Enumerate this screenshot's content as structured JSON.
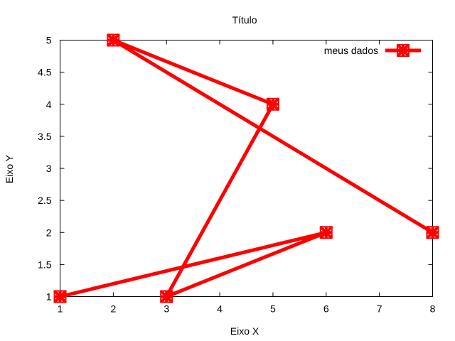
{
  "chart_data": {
    "type": "line",
    "title": "Título",
    "xlabel": "Eixo X",
    "ylabel": "Eixo Y",
    "xlim": [
      1,
      8
    ],
    "ylim": [
      1,
      5
    ],
    "xticks": [
      1,
      2,
      3,
      4,
      5,
      6,
      7,
      8
    ],
    "yticks": [
      1,
      1.5,
      2,
      2.5,
      3,
      3.5,
      4,
      4.5,
      5
    ],
    "grid": false,
    "legend_position": "top-right",
    "series": [
      {
        "name": "meus dados",
        "color": "#ff0000",
        "marker": "cross-star",
        "x": [
          1,
          6,
          3,
          5,
          2,
          8
        ],
        "y": [
          1,
          2,
          1,
          4,
          5,
          2
        ]
      }
    ]
  }
}
